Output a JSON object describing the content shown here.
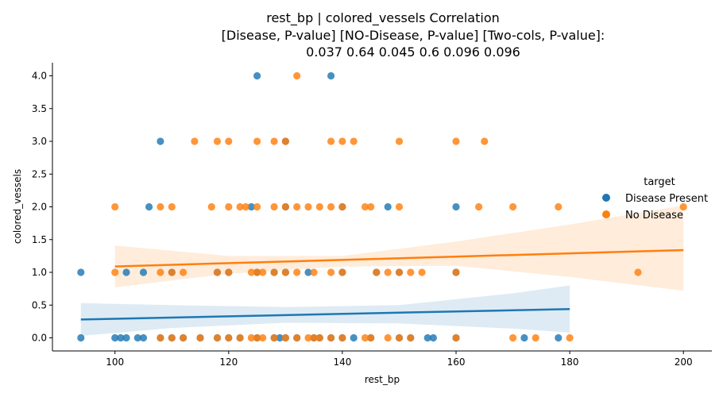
{
  "chart_data": {
    "type": "scatter",
    "title_lines": [
      "rest_bp | colored_vessels    Correlation",
      "[Disease,          P-value]     [NO-Disease,       P-value]     [Two-cols,  P-value]:",
      "0.037                   0.64                  0.045                     0.6         0.096           0.096"
    ],
    "xlabel": "rest_bp",
    "ylabel": "colored_vessels",
    "xlim": [
      89,
      205
    ],
    "ylim": [
      -0.2,
      4.2
    ],
    "xticks": [
      100,
      120,
      140,
      160,
      180,
      200
    ],
    "yticks": [
      0.0,
      0.5,
      1.0,
      1.5,
      2.0,
      2.5,
      3.0,
      3.5,
      4.0
    ],
    "xtick_labels": [
      "100",
      "120",
      "140",
      "160",
      "180",
      "200"
    ],
    "ytick_labels": [
      "0.0",
      "0.5",
      "1.0",
      "1.5",
      "2.0",
      "2.5",
      "3.0",
      "3.5",
      "4.0"
    ],
    "legend": {
      "title": "target",
      "placement": "right",
      "entries": [
        "Disease Present",
        "No Disease"
      ]
    },
    "colors": {
      "Disease Present": "#1f77b4",
      "No Disease": "#ff7f0e"
    },
    "series": [
      {
        "name": "Disease Present",
        "regression": {
          "x": [
            94,
            180
          ],
          "y": [
            0.28,
            0.44
          ]
        },
        "ci_band": {
          "x": [
            94,
            110,
            130,
            150,
            170,
            180
          ],
          "upper": [
            0.53,
            0.5,
            0.47,
            0.5,
            0.68,
            0.8
          ],
          "lower": [
            0.03,
            0.15,
            0.23,
            0.22,
            0.14,
            0.08
          ]
        },
        "points": [
          [
            94,
            0
          ],
          [
            100,
            0
          ],
          [
            101,
            0
          ],
          [
            102,
            0
          ],
          [
            104,
            0
          ],
          [
            105,
            0
          ],
          [
            108,
            0
          ],
          [
            110,
            0
          ],
          [
            112,
            0
          ],
          [
            115,
            0
          ],
          [
            118,
            0
          ],
          [
            120,
            0
          ],
          [
            122,
            0
          ],
          [
            125,
            0
          ],
          [
            128,
            0
          ],
          [
            129,
            0
          ],
          [
            130,
            0
          ],
          [
            132,
            0
          ],
          [
            135,
            0
          ],
          [
            136,
            0
          ],
          [
            138,
            0
          ],
          [
            140,
            0
          ],
          [
            142,
            0
          ],
          [
            145,
            0
          ],
          [
            150,
            0
          ],
          [
            152,
            0
          ],
          [
            155,
            0
          ],
          [
            156,
            0
          ],
          [
            160,
            0
          ],
          [
            172,
            0
          ],
          [
            178,
            0
          ],
          [
            94,
            1
          ],
          [
            102,
            1
          ],
          [
            105,
            1
          ],
          [
            110,
            1
          ],
          [
            118,
            1
          ],
          [
            120,
            1
          ],
          [
            125,
            1
          ],
          [
            128,
            1
          ],
          [
            130,
            1
          ],
          [
            134,
            1
          ],
          [
            140,
            1
          ],
          [
            146,
            1
          ],
          [
            150,
            1
          ],
          [
            160,
            1
          ],
          [
            106,
            2
          ],
          [
            124,
            2
          ],
          [
            130,
            2
          ],
          [
            140,
            2
          ],
          [
            148,
            2
          ],
          [
            160,
            2
          ],
          [
            108,
            3
          ],
          [
            130,
            3
          ],
          [
            125,
            4
          ],
          [
            138,
            4
          ]
        ]
      },
      {
        "name": "No Disease",
        "regression": {
          "x": [
            100,
            200
          ],
          "y": [
            1.09,
            1.34
          ]
        },
        "ci_band": {
          "x": [
            100,
            120,
            140,
            160,
            180,
            200
          ],
          "upper": [
            1.41,
            1.25,
            1.25,
            1.47,
            1.73,
            2.02
          ],
          "lower": [
            0.77,
            0.98,
            1.09,
            1.1,
            0.93,
            0.72
          ]
        },
        "points": [
          [
            108,
            0
          ],
          [
            110,
            0
          ],
          [
            112,
            0
          ],
          [
            115,
            0
          ],
          [
            118,
            0
          ],
          [
            120,
            0
          ],
          [
            122,
            0
          ],
          [
            124,
            0
          ],
          [
            125,
            0
          ],
          [
            126,
            0
          ],
          [
            128,
            0
          ],
          [
            130,
            0
          ],
          [
            132,
            0
          ],
          [
            134,
            0
          ],
          [
            135,
            0
          ],
          [
            136,
            0
          ],
          [
            138,
            0
          ],
          [
            140,
            0
          ],
          [
            144,
            0
          ],
          [
            145,
            0
          ],
          [
            148,
            0
          ],
          [
            150,
            0
          ],
          [
            152,
            0
          ],
          [
            160,
            0
          ],
          [
            170,
            0
          ],
          [
            174,
            0
          ],
          [
            180,
            0
          ],
          [
            100,
            1
          ],
          [
            108,
            1
          ],
          [
            110,
            1
          ],
          [
            112,
            1
          ],
          [
            118,
            1
          ],
          [
            120,
            1
          ],
          [
            124,
            1
          ],
          [
            125,
            1
          ],
          [
            126,
            1
          ],
          [
            128,
            1
          ],
          [
            130,
            1
          ],
          [
            132,
            1
          ],
          [
            135,
            1
          ],
          [
            138,
            1
          ],
          [
            140,
            1
          ],
          [
            146,
            1
          ],
          [
            148,
            1
          ],
          [
            150,
            1
          ],
          [
            152,
            1
          ],
          [
            154,
            1
          ],
          [
            160,
            1
          ],
          [
            192,
            1
          ],
          [
            100,
            2
          ],
          [
            108,
            2
          ],
          [
            110,
            2
          ],
          [
            117,
            2
          ],
          [
            120,
            2
          ],
          [
            122,
            2
          ],
          [
            123,
            2
          ],
          [
            125,
            2
          ],
          [
            128,
            2
          ],
          [
            130,
            2
          ],
          [
            132,
            2
          ],
          [
            134,
            2
          ],
          [
            136,
            2
          ],
          [
            138,
            2
          ],
          [
            140,
            2
          ],
          [
            144,
            2
          ],
          [
            145,
            2
          ],
          [
            150,
            2
          ],
          [
            164,
            2
          ],
          [
            170,
            2
          ],
          [
            178,
            2
          ],
          [
            200,
            2
          ],
          [
            114,
            3
          ],
          [
            118,
            3
          ],
          [
            120,
            3
          ],
          [
            125,
            3
          ],
          [
            128,
            3
          ],
          [
            130,
            3
          ],
          [
            138,
            3
          ],
          [
            140,
            3
          ],
          [
            142,
            3
          ],
          [
            150,
            3
          ],
          [
            160,
            3
          ],
          [
            165,
            3
          ],
          [
            132,
            4
          ]
        ]
      }
    ]
  }
}
